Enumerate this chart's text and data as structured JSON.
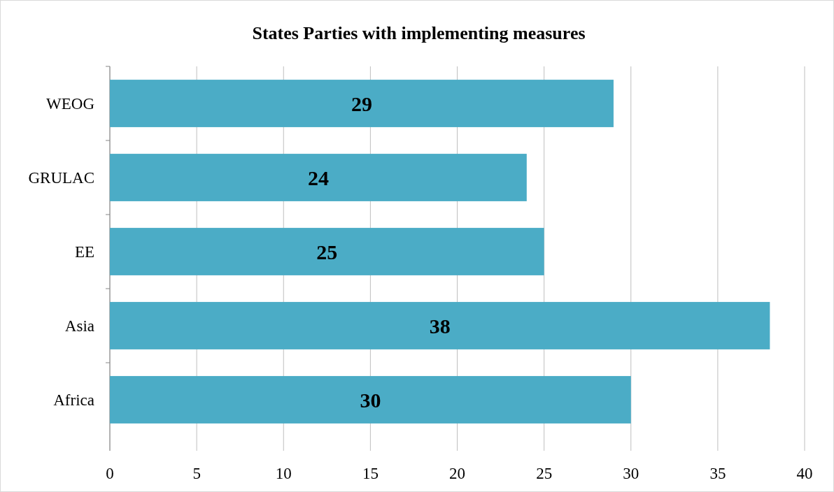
{
  "chart_data": {
    "type": "bar",
    "title": "States Parties with implementing measures",
    "orientation": "horizontal",
    "categories": [
      "WEOG",
      "GRULAC",
      "EE",
      "Asia",
      "Africa"
    ],
    "values": [
      29,
      24,
      25,
      38,
      30
    ],
    "color": "#4bacc6",
    "xlim": [
      0,
      40
    ],
    "xticks": [
      0,
      5,
      10,
      15,
      20,
      25,
      30,
      35,
      40
    ],
    "grid": "x",
    "data_labels": true
  }
}
